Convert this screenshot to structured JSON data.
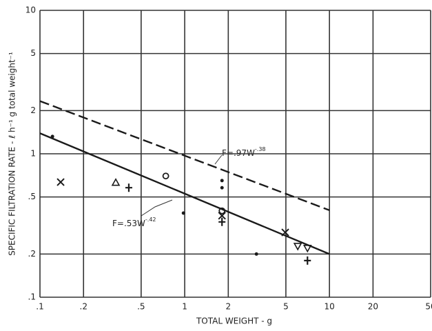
{
  "chart_data": {
    "type": "scatter",
    "x_label": "TOTAL WEIGHT  -  g",
    "y_label": "SPECIFIC FILTRATION RATE - ℓ h⁻¹ g total weight⁻¹",
    "xscale": "log",
    "yscale": "log",
    "grid": true,
    "xlim": [
      0.1,
      50
    ],
    "ylim": [
      0.1,
      10
    ],
    "xticks": [
      {
        "value": 0.1,
        "label": ".1"
      },
      {
        "value": 0.2,
        "label": ".2"
      },
      {
        "value": 0.5,
        "label": ".5"
      },
      1,
      2,
      5,
      10,
      20,
      50
    ],
    "yticks": [
      {
        "value": 0.1,
        "label": ".1"
      },
      {
        "value": 0.2,
        "label": ".2"
      },
      {
        "value": 0.5,
        "label": ".5"
      },
      1,
      2,
      5,
      10
    ],
    "color": "#1a1a1a",
    "series": [
      {
        "marker": "dot",
        "x": [
          0.122,
          0.98,
          1.81,
          1.81,
          3.13
        ],
        "values": [
          1.32,
          0.386,
          0.65,
          0.58,
          0.2
        ]
      },
      {
        "marker": "x",
        "x": [
          0.139,
          1.81,
          4.95
        ],
        "values": [
          0.635,
          0.37,
          0.283
        ]
      },
      {
        "marker": "triangle",
        "x": [
          0.334
        ],
        "values": [
          0.63
        ]
      },
      {
        "marker": "plus",
        "x": [
          0.411,
          1.81,
          7.05
        ],
        "values": [
          0.58,
          0.335,
          0.18
        ]
      },
      {
        "marker": "circle",
        "x": [
          0.74,
          1.81
        ],
        "values": [
          0.7,
          0.4
        ]
      },
      {
        "marker": "triangle-down",
        "x": [
          6.04,
          7.05
        ],
        "values": [
          0.227,
          0.22
        ]
      }
    ],
    "fits": [
      {
        "style": "solid",
        "x": [
          0.1,
          10
        ],
        "values": [
          1.39,
          0.2
        ],
        "label": {
          "text": "F=.53W",
          "exponent": "-.42"
        }
      },
      {
        "style": "dashed",
        "x": [
          0.1,
          10
        ],
        "values": [
          2.33,
          0.404
        ],
        "label": {
          "text": "F=.97W",
          "exponent": "-.38"
        }
      }
    ]
  }
}
